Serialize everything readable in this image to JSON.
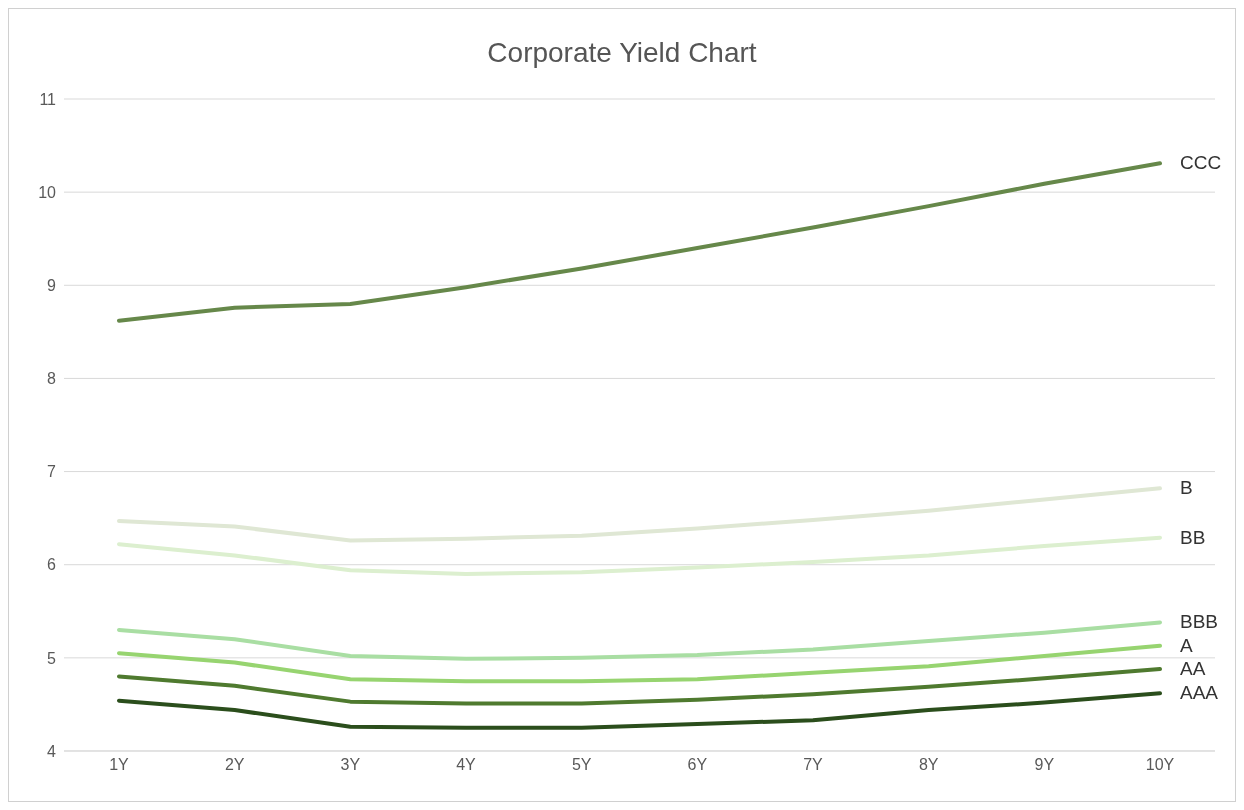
{
  "chart_data": {
    "type": "line",
    "title": "Corporate Yield Chart",
    "categories": [
      "1Y",
      "2Y",
      "3Y",
      "4Y",
      "5Y",
      "6Y",
      "7Y",
      "8Y",
      "9Y",
      "10Y"
    ],
    "series": [
      {
        "name": "CCC",
        "color": "#66884a",
        "values": [
          8.62,
          8.76,
          8.8,
          8.98,
          9.18,
          9.4,
          9.62,
          9.85,
          10.09,
          10.31
        ]
      },
      {
        "name": "B",
        "color": "#dfe7d4",
        "values": [
          6.47,
          6.41,
          6.26,
          6.28,
          6.31,
          6.39,
          6.48,
          6.58,
          6.7,
          6.82
        ]
      },
      {
        "name": "BB",
        "color": "#dcefcf",
        "values": [
          6.22,
          6.1,
          5.94,
          5.9,
          5.92,
          5.97,
          6.03,
          6.1,
          6.2,
          6.29
        ]
      },
      {
        "name": "BBB",
        "color": "#a9dea3",
        "values": [
          5.3,
          5.2,
          5.02,
          4.99,
          5.0,
          5.03,
          5.09,
          5.18,
          5.27,
          5.38
        ]
      },
      {
        "name": "A",
        "color": "#97d470",
        "values": [
          5.05,
          4.95,
          4.77,
          4.75,
          4.75,
          4.77,
          4.84,
          4.91,
          5.02,
          5.13
        ]
      },
      {
        "name": "AA",
        "color": "#4f7a2f",
        "values": [
          4.8,
          4.7,
          4.53,
          4.51,
          4.51,
          4.55,
          4.61,
          4.69,
          4.78,
          4.88
        ]
      },
      {
        "name": "AAA",
        "color": "#2b4e1c",
        "values": [
          4.54,
          4.44,
          4.26,
          4.25,
          4.25,
          4.29,
          4.33,
          4.44,
          4.52,
          4.62
        ]
      }
    ],
    "ylim": [
      4,
      11
    ],
    "yticks": [
      4,
      5,
      6,
      7,
      8,
      9,
      10,
      11
    ],
    "grid": "y",
    "legend": false,
    "marker": "none",
    "line_style": "solid"
  }
}
